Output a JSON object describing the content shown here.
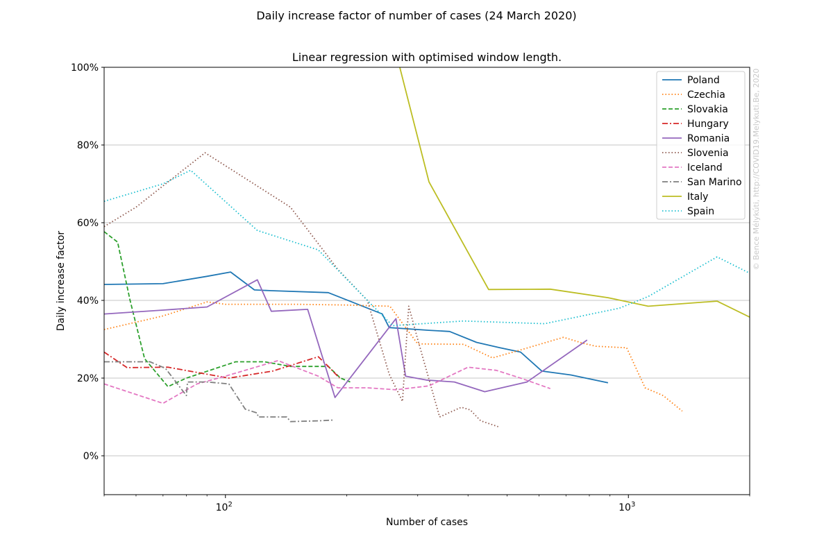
{
  "chart_data": {
    "type": "line",
    "suptitle": "Daily increase factor of number of cases (24 March 2020)",
    "title": "Linear regression with optimised window length.",
    "xlabel": "Number of cases",
    "ylabel": "Daily increase factor",
    "x_scale": "log",
    "xlim": [
      50,
      2000
    ],
    "ylim": [
      -0.1,
      1.0
    ],
    "x_ticks": [
      {
        "value": 100,
        "base": "10",
        "exp": "2"
      },
      {
        "value": 1000,
        "base": "10",
        "exp": "3"
      }
    ],
    "y_ticks": [
      {
        "value": 0.0,
        "label": "0%"
      },
      {
        "value": 0.2,
        "label": "20%"
      },
      {
        "value": 0.4,
        "label": "40%"
      },
      {
        "value": 0.6,
        "label": "60%"
      },
      {
        "value": 0.8,
        "label": "80%"
      },
      {
        "value": 1.0,
        "label": "100%"
      }
    ],
    "grid": "horizontal",
    "legend_position": "top-right",
    "watermark": "© Bence Mélykúti, http://COVID19.Melykuti.Be, 2020",
    "series": [
      {
        "name": "Poland",
        "color": "#1f77b4",
        "style": "solid",
        "points": [
          [
            50,
            0.441
          ],
          [
            70,
            0.443
          ],
          [
            90,
            0.462
          ],
          [
            103,
            0.473
          ],
          [
            118,
            0.427
          ],
          [
            130,
            0.425
          ],
          [
            180,
            0.42
          ],
          [
            245,
            0.365
          ],
          [
            255,
            0.33
          ],
          [
            320,
            0.323
          ],
          [
            360,
            0.32
          ],
          [
            420,
            0.292
          ],
          [
            480,
            0.278
          ],
          [
            540,
            0.267
          ],
          [
            610,
            0.218
          ],
          [
            720,
            0.208
          ],
          [
            890,
            0.188
          ]
        ]
      },
      {
        "name": "Czechia",
        "color": "#ff7f0e",
        "style": "dotted",
        "points": [
          [
            50,
            0.325
          ],
          [
            70,
            0.36
          ],
          [
            90,
            0.396
          ],
          [
            100,
            0.39
          ],
          [
            150,
            0.39
          ],
          [
            200,
            0.388
          ],
          [
            256,
            0.385
          ],
          [
            300,
            0.288
          ],
          [
            390,
            0.287
          ],
          [
            460,
            0.252
          ],
          [
            530,
            0.27
          ],
          [
            690,
            0.305
          ],
          [
            770,
            0.29
          ],
          [
            830,
            0.282
          ],
          [
            990,
            0.278
          ],
          [
            1100,
            0.175
          ],
          [
            1220,
            0.155
          ],
          [
            1360,
            0.115
          ]
        ]
      },
      {
        "name": "Slovakia",
        "color": "#2ca02c",
        "style": "dashed",
        "points": [
          [
            50,
            0.577
          ],
          [
            54,
            0.55
          ],
          [
            58,
            0.4
          ],
          [
            63,
            0.25
          ],
          [
            72,
            0.178
          ],
          [
            80,
            0.2
          ],
          [
            106,
            0.242
          ],
          [
            125,
            0.242
          ],
          [
            145,
            0.23
          ],
          [
            180,
            0.23
          ],
          [
            193,
            0.2
          ],
          [
            204,
            0.19
          ]
        ]
      },
      {
        "name": "Hungary",
        "color": "#d62728",
        "style": "dashdot",
        "points": [
          [
            50,
            0.267
          ],
          [
            57,
            0.227
          ],
          [
            72,
            0.228
          ],
          [
            90,
            0.21
          ],
          [
            102,
            0.2
          ],
          [
            131,
            0.218
          ],
          [
            170,
            0.255
          ],
          [
            180,
            0.23
          ],
          [
            192,
            0.2
          ]
        ]
      },
      {
        "name": "Romania",
        "color": "#9467bd",
        "style": "solid",
        "points": [
          [
            50,
            0.365
          ],
          [
            70,
            0.375
          ],
          [
            90,
            0.383
          ],
          [
            120,
            0.453
          ],
          [
            130,
            0.372
          ],
          [
            160,
            0.377
          ],
          [
            187,
            0.15
          ],
          [
            265,
            0.353
          ],
          [
            280,
            0.205
          ],
          [
            315,
            0.195
          ],
          [
            370,
            0.19
          ],
          [
            440,
            0.165
          ],
          [
            560,
            0.19
          ],
          [
            790,
            0.298
          ]
        ]
      },
      {
        "name": "Slovenia",
        "color": "#8c564b",
        "style": "dotted",
        "points": [
          [
            50,
            0.59
          ],
          [
            60,
            0.64
          ],
          [
            89,
            0.78
          ],
          [
            145,
            0.64
          ],
          [
            190,
            0.48
          ],
          [
            225,
            0.4
          ],
          [
            255,
            0.21
          ],
          [
            275,
            0.14
          ],
          [
            285,
            0.385
          ],
          [
            300,
            0.3
          ],
          [
            340,
            0.1
          ],
          [
            385,
            0.125
          ],
          [
            405,
            0.118
          ],
          [
            430,
            0.09
          ],
          [
            475,
            0.075
          ]
        ]
      },
      {
        "name": "Iceland",
        "color": "#e377c2",
        "style": "dashed",
        "points": [
          [
            50,
            0.185
          ],
          [
            70,
            0.135
          ],
          [
            85,
            0.185
          ],
          [
            100,
            0.205
          ],
          [
            135,
            0.245
          ],
          [
            170,
            0.205
          ],
          [
            190,
            0.175
          ],
          [
            225,
            0.175
          ],
          [
            265,
            0.17
          ],
          [
            320,
            0.18
          ],
          [
            400,
            0.228
          ],
          [
            470,
            0.22
          ],
          [
            540,
            0.2
          ],
          [
            640,
            0.173
          ]
        ]
      },
      {
        "name": "San Marino",
        "color": "#7f7f7f",
        "style": "dashdot",
        "points": [
          [
            50,
            0.242
          ],
          [
            65,
            0.242
          ],
          [
            71,
            0.225
          ],
          [
            80,
            0.155
          ],
          [
            80.5,
            0.19
          ],
          [
            90,
            0.19
          ],
          [
            102,
            0.185
          ],
          [
            112,
            0.12
          ],
          [
            120,
            0.11
          ],
          [
            120.5,
            0.1
          ],
          [
            142,
            0.1
          ],
          [
            145,
            0.088
          ],
          [
            170,
            0.09
          ],
          [
            185,
            0.092
          ]
        ]
      },
      {
        "name": "Italy",
        "color": "#bcbd22",
        "style": "solid",
        "points": [
          [
            270,
            1.005
          ],
          [
            320,
            0.705
          ],
          [
            450,
            0.428
          ],
          [
            640,
            0.429
          ],
          [
            890,
            0.407
          ],
          [
            1120,
            0.385
          ],
          [
            1660,
            0.398
          ],
          [
            2000,
            0.357
          ]
        ]
      },
      {
        "name": "Spain",
        "color": "#17becf",
        "style": "dotted",
        "points": [
          [
            50,
            0.655
          ],
          [
            70,
            0.7
          ],
          [
            82,
            0.735
          ],
          [
            120,
            0.58
          ],
          [
            170,
            0.53
          ],
          [
            230,
            0.39
          ],
          [
            260,
            0.335
          ],
          [
            390,
            0.347
          ],
          [
            620,
            0.34
          ],
          [
            950,
            0.38
          ],
          [
            1120,
            0.41
          ],
          [
            1660,
            0.512
          ],
          [
            2000,
            0.47
          ]
        ]
      }
    ]
  }
}
